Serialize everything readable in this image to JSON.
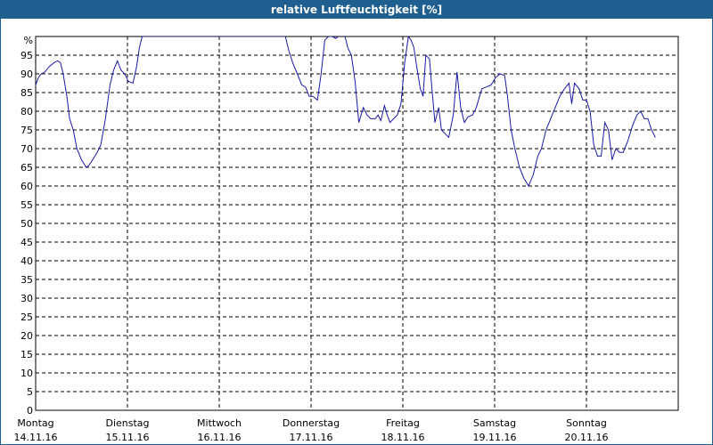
{
  "chart_data": {
    "type": "line",
    "title": "relative Luftfeuchtigkeit [%]",
    "ylabel": "%",
    "ylim": [
      0,
      100
    ],
    "yticks": [
      0,
      5,
      10,
      15,
      20,
      25,
      30,
      35,
      40,
      45,
      50,
      55,
      60,
      65,
      70,
      75,
      80,
      85,
      90,
      95
    ],
    "xlim": [
      0,
      7
    ],
    "grid": true,
    "colors": {
      "line": "#1a1aa8",
      "grid": "#000000",
      "title_bar": "#1f5f8f",
      "title_text": "#ffffff"
    },
    "categories": [
      {
        "day": "Montag",
        "date": "14.11.16"
      },
      {
        "day": "Dienstag",
        "date": "15.11.16"
      },
      {
        "day": "Mittwoch",
        "date": "16.11.16"
      },
      {
        "day": "Donnerstag",
        "date": "17.11.16"
      },
      {
        "day": "Freitag",
        "date": "18.11.16"
      },
      {
        "day": "Samstag",
        "date": "19.11.16"
      },
      {
        "day": "Sonntag",
        "date": "20.11.16"
      }
    ],
    "series": [
      {
        "points": [
          [
            0.0,
            87
          ],
          [
            0.03,
            89
          ],
          [
            0.06,
            90
          ],
          [
            0.1,
            90.5
          ],
          [
            0.15,
            92
          ],
          [
            0.2,
            93
          ],
          [
            0.24,
            93.5
          ],
          [
            0.27,
            93
          ],
          [
            0.3,
            90
          ],
          [
            0.34,
            84
          ],
          [
            0.37,
            78
          ],
          [
            0.41,
            75
          ],
          [
            0.45,
            70
          ],
          [
            0.5,
            67
          ],
          [
            0.55,
            65
          ],
          [
            0.58,
            65.5
          ],
          [
            0.62,
            67
          ],
          [
            0.67,
            69
          ],
          [
            0.71,
            71
          ],
          [
            0.76,
            78
          ],
          [
            0.81,
            87
          ],
          [
            0.85,
            91
          ],
          [
            0.89,
            93.5
          ],
          [
            0.93,
            91
          ],
          [
            0.97,
            90
          ],
          [
            1.01,
            88
          ],
          [
            1.06,
            87.5
          ],
          [
            1.1,
            92
          ],
          [
            1.13,
            97
          ],
          [
            1.16,
            100
          ],
          [
            1.2,
            100
          ],
          [
            1.22,
            100
          ],
          [
            2.72,
            100
          ],
          [
            2.76,
            96
          ],
          [
            2.8,
            93
          ],
          [
            2.85,
            90
          ],
          [
            2.9,
            87
          ],
          [
            2.94,
            86.5
          ],
          [
            2.98,
            84
          ],
          [
            3.02,
            84
          ],
          [
            3.07,
            83
          ],
          [
            3.11,
            90
          ],
          [
            3.15,
            99
          ],
          [
            3.19,
            100
          ],
          [
            3.23,
            100
          ],
          [
            3.27,
            99.5
          ],
          [
            3.32,
            100.5
          ],
          [
            3.37,
            100
          ],
          [
            3.4,
            97
          ],
          [
            3.44,
            95
          ],
          [
            3.48,
            88
          ],
          [
            3.52,
            77
          ],
          [
            3.57,
            81
          ],
          [
            3.61,
            79
          ],
          [
            3.65,
            78
          ],
          [
            3.7,
            78
          ],
          [
            3.73,
            79
          ],
          [
            3.76,
            77.5
          ],
          [
            3.8,
            81.5
          ],
          [
            3.83,
            79
          ],
          [
            3.86,
            77
          ],
          [
            3.9,
            78
          ],
          [
            3.94,
            79
          ],
          [
            3.98,
            82
          ],
          [
            4.02,
            93
          ],
          [
            4.06,
            100
          ],
          [
            4.09,
            99
          ],
          [
            4.12,
            97
          ],
          [
            4.15,
            92
          ],
          [
            4.19,
            86
          ],
          [
            4.22,
            84
          ],
          [
            4.25,
            95
          ],
          [
            4.29,
            94
          ],
          [
            4.32,
            85
          ],
          [
            4.35,
            77
          ],
          [
            4.39,
            81
          ],
          [
            4.42,
            75
          ],
          [
            4.46,
            74
          ],
          [
            4.5,
            73
          ],
          [
            4.55,
            79
          ],
          [
            4.59,
            90.5
          ],
          [
            4.63,
            81
          ],
          [
            4.67,
            77
          ],
          [
            4.71,
            78.5
          ],
          [
            4.76,
            79
          ],
          [
            4.8,
            81
          ],
          [
            4.86,
            86
          ],
          [
            4.91,
            86.5
          ],
          [
            4.96,
            87
          ],
          [
            5.01,
            89
          ],
          [
            5.06,
            90
          ],
          [
            5.11,
            89.5
          ],
          [
            5.14,
            84
          ],
          [
            5.18,
            75
          ],
          [
            5.22,
            70
          ],
          [
            5.27,
            65
          ],
          [
            5.32,
            62
          ],
          [
            5.37,
            60
          ],
          [
            5.42,
            63
          ],
          [
            5.47,
            68
          ],
          [
            5.51,
            70
          ],
          [
            5.56,
            75
          ],
          [
            5.61,
            78
          ],
          [
            5.66,
            81
          ],
          [
            5.71,
            84
          ],
          [
            5.76,
            86
          ],
          [
            5.81,
            87.5
          ],
          [
            5.84,
            82
          ],
          [
            5.87,
            87.5
          ],
          [
            5.92,
            86
          ],
          [
            5.96,
            83
          ],
          [
            6.0,
            83
          ],
          [
            6.04,
            80
          ],
          [
            6.08,
            71
          ],
          [
            6.12,
            68
          ],
          [
            6.16,
            68
          ],
          [
            6.2,
            77
          ],
          [
            6.24,
            75
          ],
          [
            6.28,
            67
          ],
          [
            6.32,
            70
          ],
          [
            6.36,
            69
          ],
          [
            6.4,
            69
          ],
          [
            6.45,
            72
          ],
          [
            6.5,
            76
          ],
          [
            6.55,
            79
          ],
          [
            6.59,
            80
          ],
          [
            6.63,
            78
          ],
          [
            6.67,
            78
          ],
          [
            6.71,
            75
          ],
          [
            6.75,
            73
          ]
        ]
      }
    ]
  }
}
